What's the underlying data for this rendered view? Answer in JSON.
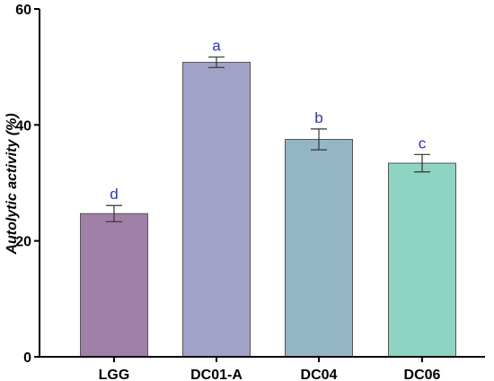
{
  "chart_data": {
    "type": "bar",
    "categories": [
      "LGG",
      "DC01-A",
      "DC04",
      "DC06"
    ],
    "values": [
      24.7,
      50.8,
      37.5,
      33.4
    ],
    "errors": [
      1.4,
      0.9,
      1.8,
      1.5
    ],
    "significance": [
      "d",
      "a",
      "b",
      "c"
    ],
    "bar_colors": [
      "#a07fa8",
      "#a1a2c8",
      "#94b6c4",
      "#8dd5c2"
    ],
    "title": "",
    "xlabel": "",
    "ylabel": "Autolytic activity (%)",
    "ylim": [
      0,
      60
    ],
    "yticks": [
      0,
      20,
      40,
      60
    ],
    "grid": false,
    "legend": "none"
  }
}
